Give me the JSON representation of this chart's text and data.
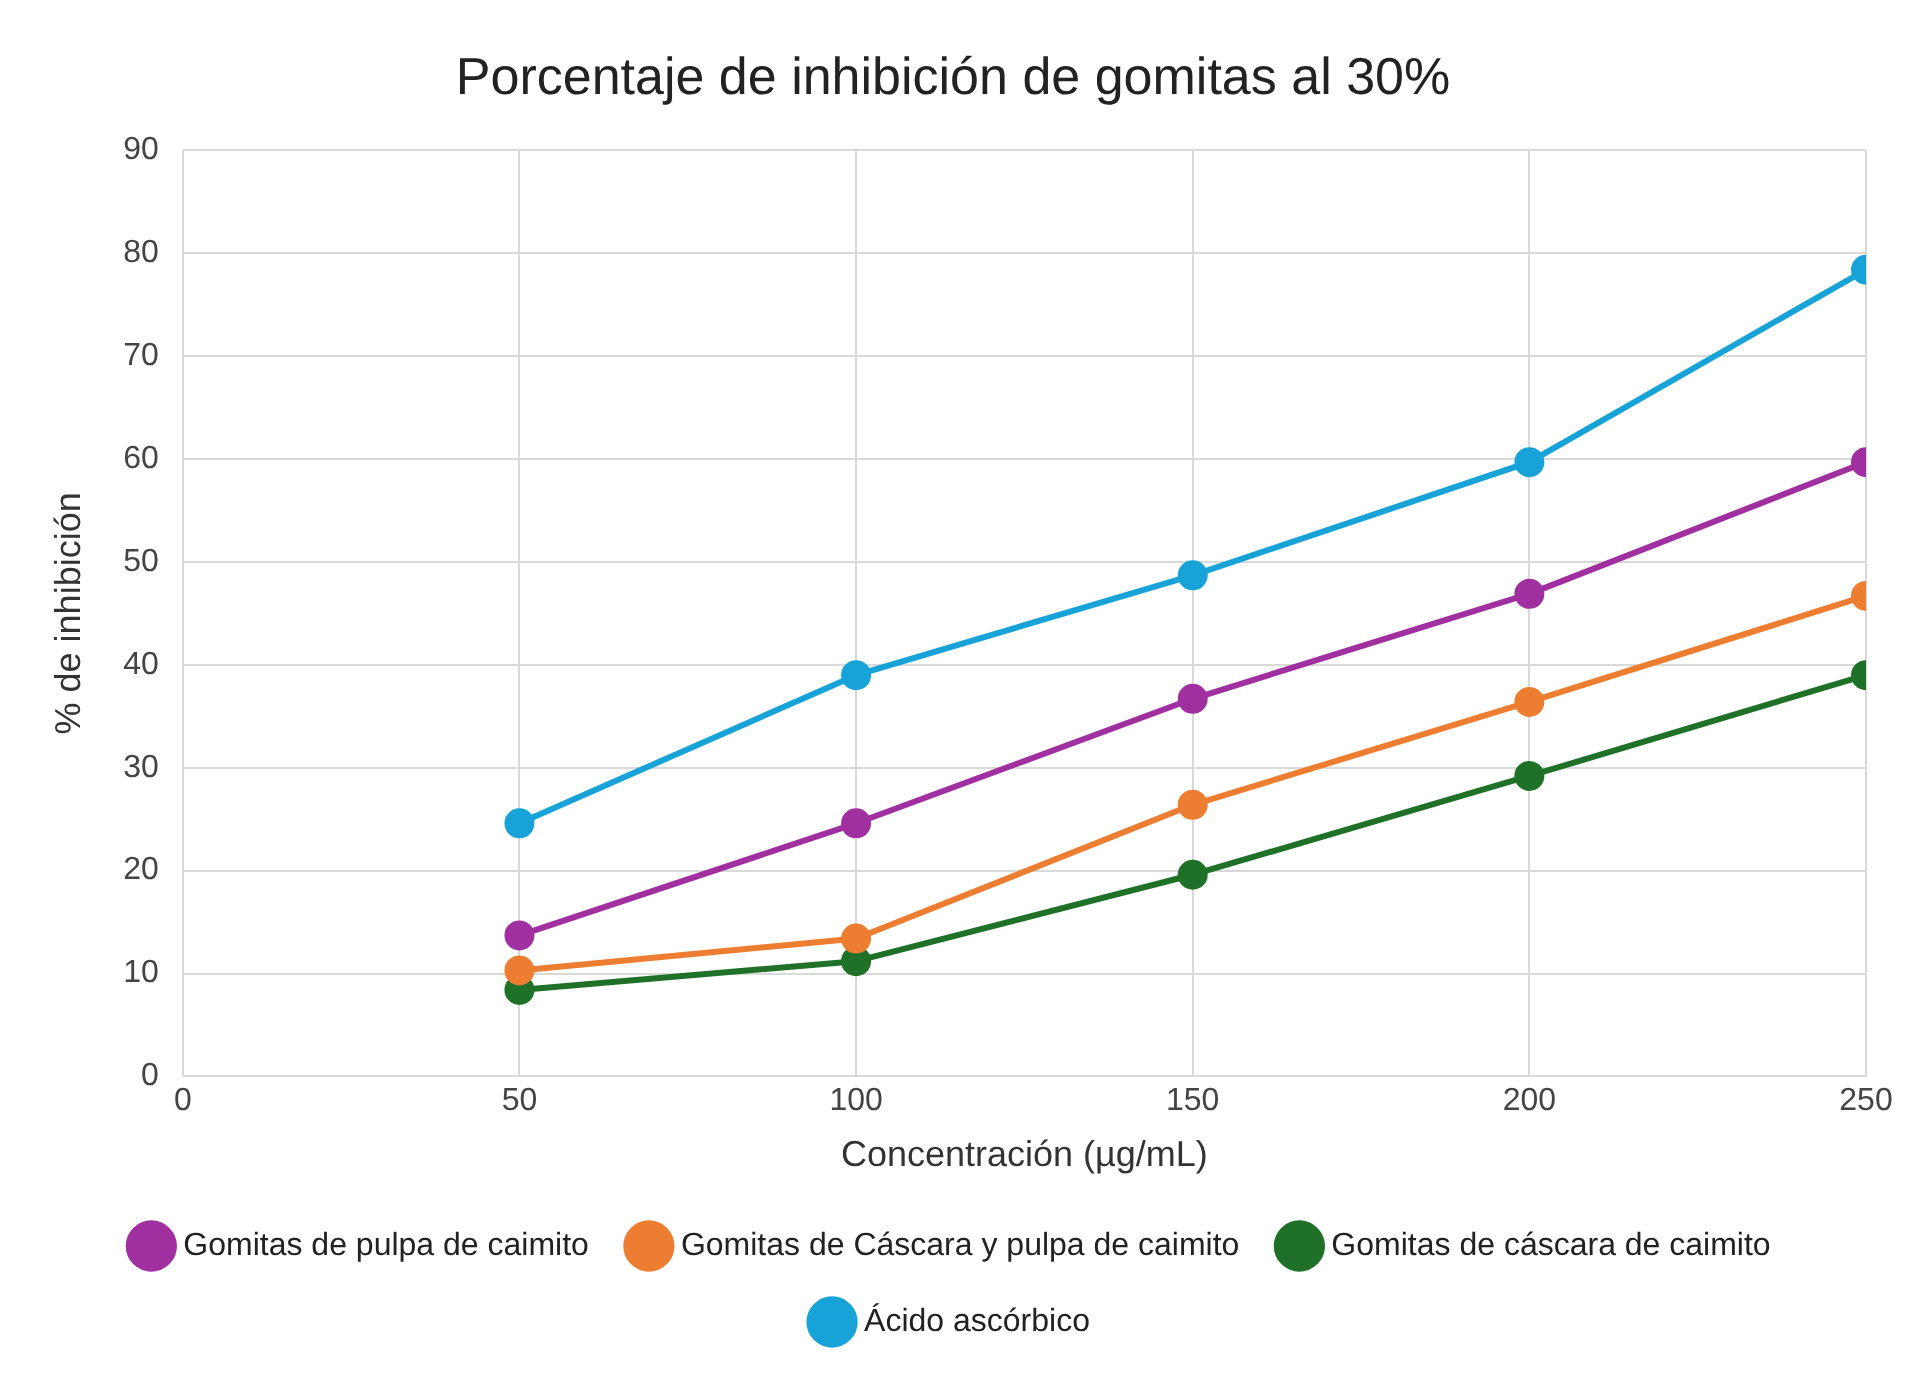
{
  "chart_data": {
    "type": "line",
    "title": "Porcentaje de inhibición de gomitas al 30%",
    "xlabel": "Concentración (µg/mL)",
    "ylabel": "% de inhibición",
    "x": [
      50,
      100,
      150,
      200,
      250
    ],
    "series": [
      {
        "name": "Gomitas de pulpa de caimito",
        "color": "#a0309f",
        "values": [
          13.7,
          24.6,
          36.7,
          46.9,
          59.7
        ]
      },
      {
        "name": "Gomitas de Cáscara y pulpa de caimito",
        "color": "#ed7d31",
        "values": [
          10.3,
          13.4,
          26.4,
          36.4,
          46.7
        ]
      },
      {
        "name": "Gomitas de cáscara de caimito",
        "color": "#1e7127",
        "values": [
          8.4,
          11.2,
          19.6,
          29.2,
          39.0
        ]
      },
      {
        "name": "Ácido ascórbico",
        "color": "#17a3d8",
        "values": [
          24.6,
          39.0,
          48.7,
          59.7,
          78.4
        ]
      }
    ],
    "xlim": [
      0,
      250
    ],
    "xticks": [
      0,
      50,
      100,
      150,
      200,
      250
    ],
    "ylim": [
      0,
      90
    ],
    "yticks": [
      0,
      10,
      20,
      30,
      40,
      50,
      60,
      70,
      80,
      90
    ],
    "grid": true,
    "legend": "bottom",
    "marker": "circle",
    "line_style": "solid"
  }
}
